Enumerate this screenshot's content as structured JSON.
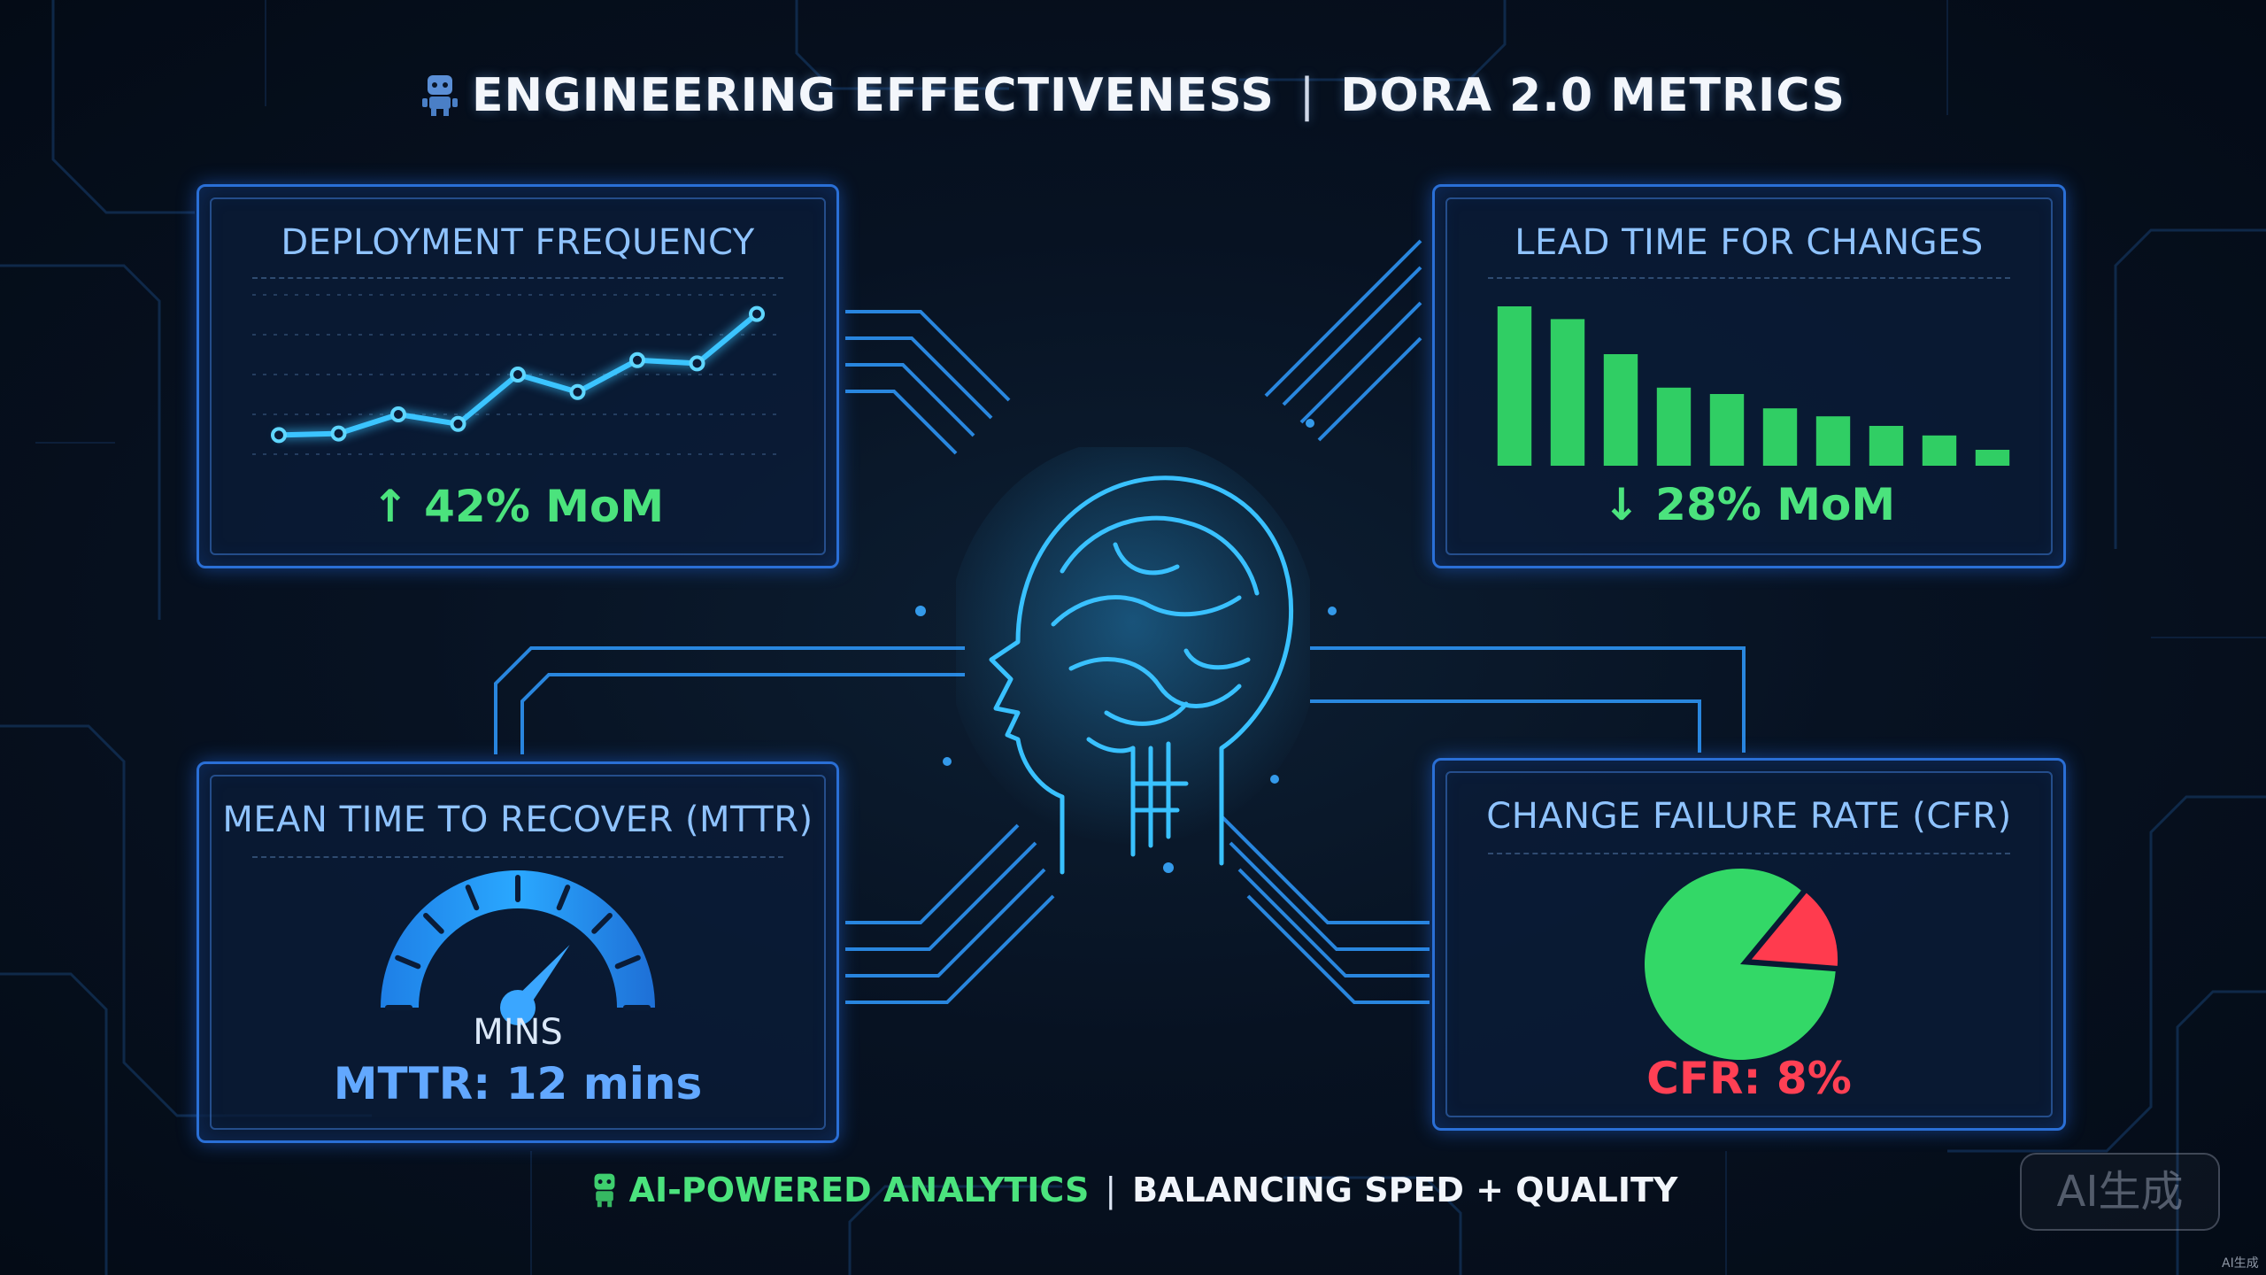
{
  "header": {
    "title_left": "ENGINEERING EFFECTIVENESS",
    "separator": "|",
    "title_right": "DORA 2.0 METRICS",
    "icon": "robot-icon"
  },
  "footer": {
    "ai_label": "AI-POWERED ANALYTICS",
    "separator": "|",
    "balance_label": "BALANCING SPED + QUALITY",
    "icon": "robot-icon"
  },
  "watermark": {
    "badge": "AI生成",
    "small": "AI生成"
  },
  "center_graphic": "brain-head-icon",
  "colors": {
    "accent_blue": "#2a6fd6",
    "title_blue": "#8fc3ff",
    "green": "#33d867",
    "red": "#ff3b4e",
    "gauge_blue": "#2aa0ff"
  },
  "chart_data": [
    {
      "type": "line",
      "title": "DEPLOYMENT FREQUENCY",
      "x": [
        1,
        2,
        3,
        4,
        5,
        6,
        7,
        8,
        9
      ],
      "series": [
        {
          "values": [
            12,
            13,
            25,
            19,
            50,
            39,
            59,
            57,
            88
          ]
        }
      ],
      "ylim": [
        0,
        100
      ],
      "grid": true,
      "annotation": "↑ 42% MoM"
    },
    {
      "type": "bar",
      "title": "LEAD TIME FOR CHANGES",
      "categories": [
        "1",
        "2",
        "3",
        "4",
        "5",
        "6",
        "7",
        "8",
        "9",
        "10"
      ],
      "values": [
        100,
        92,
        70,
        49,
        45,
        36,
        31,
        25,
        19,
        10
      ],
      "ylim": [
        0,
        100
      ],
      "annotation": "↓ 28% MoM"
    },
    {
      "type": "gauge",
      "title": "MEAN TIME TO RECOVER (MTTR)",
      "unit_label": "MINS",
      "value": 12,
      "range": [
        0,
        60
      ],
      "ticks": 8,
      "annotation": "MTTR: 12 mins"
    },
    {
      "type": "pie",
      "title": "CHANGE FAILURE RATE (CFR)",
      "slices": [
        {
          "label": "failure",
          "value": 8,
          "color": "#ff3b4e"
        },
        {
          "label": "success",
          "value": 92,
          "color": "#33d867"
        }
      ],
      "annotation": "CFR: 8%"
    }
  ]
}
